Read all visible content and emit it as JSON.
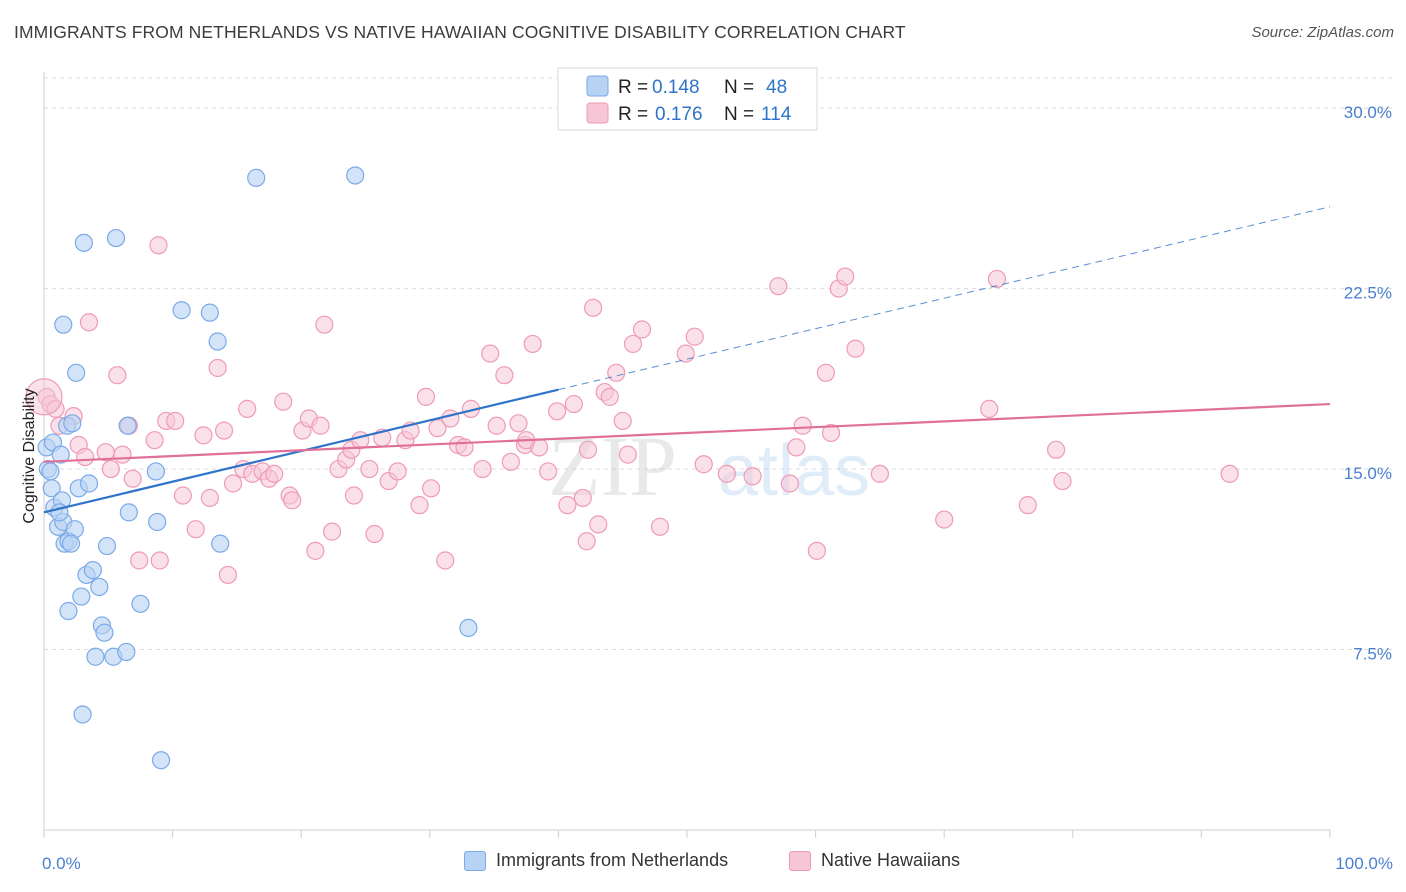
{
  "title": "IMMIGRANTS FROM NETHERLANDS VS NATIVE HAWAIIAN COGNITIVE DISABILITY CORRELATION CHART",
  "source": "Source: ZipAtlas.com",
  "watermark": "ZIPatlas",
  "colors": {
    "blue": "#7aaae8",
    "blue_fill": "#b8d2f4",
    "blue_line": "#2f74c8",
    "pink": "#ef9ab7",
    "pink_fill": "#f6c6d6",
    "pink_line": "#e0709a",
    "grid": "#dcdcdc",
    "tick_label": "#4a7fd0"
  },
  "legend": {
    "rows": [
      {
        "r_label": "R =",
        "r_value": "0.148",
        "n_label": "N =",
        "n_value": "48"
      },
      {
        "r_label": "R =",
        "r_value": "0.176",
        "n_label": "N =",
        "n_value": "114"
      }
    ]
  },
  "bottom_legend": [
    "Immigrants from Netherlands",
    "Native Hawaiians"
  ],
  "chart_data": {
    "type": "scatter",
    "title": "IMMIGRANTS FROM NETHERLANDS VS NATIVE HAWAIIAN COGNITIVE DISABILITY CORRELATION CHART",
    "xlabel": "",
    "ylabel": "Cognitive Disability",
    "xlim": [
      0,
      100
    ],
    "ylim": [
      0,
      31.5
    ],
    "x_tick_labels": [
      "0.0%",
      "100.0%"
    ],
    "y_ticks": [
      7.5,
      15.0,
      22.5,
      30.0
    ],
    "y_tick_labels": [
      "7.5%",
      "15.0%",
      "22.5%",
      "30.0%"
    ],
    "series": [
      {
        "name": "Immigrants from Netherlands",
        "r": 0.148,
        "n": 48,
        "trend": {
          "x0": 0,
          "y0": 13.2,
          "x1": 40,
          "y1": 18.3,
          "dash_to_x": 100,
          "dash_to_y": 25.9
        },
        "points": [
          [
            0.2,
            15.9
          ],
          [
            0.3,
            15.0
          ],
          [
            0.5,
            14.9
          ],
          [
            0.6,
            14.2
          ],
          [
            0.7,
            16.1
          ],
          [
            0.8,
            13.4
          ],
          [
            1.1,
            12.6
          ],
          [
            1.3,
            15.6
          ],
          [
            1.4,
            13.7
          ],
          [
            1.5,
            12.8
          ],
          [
            1.6,
            11.9
          ],
          [
            1.8,
            16.8
          ],
          [
            1.9,
            12.0
          ],
          [
            2.2,
            16.9
          ],
          [
            2.4,
            12.5
          ],
          [
            2.5,
            19.0
          ],
          [
            2.7,
            14.2
          ],
          [
            2.9,
            9.7
          ],
          [
            3.1,
            24.4
          ],
          [
            3.3,
            10.6
          ],
          [
            3.5,
            14.4
          ],
          [
            3.8,
            10.8
          ],
          [
            4.0,
            7.2
          ],
          [
            4.3,
            10.1
          ],
          [
            4.5,
            8.5
          ],
          [
            4.7,
            8.2
          ],
          [
            4.9,
            11.8
          ],
          [
            5.4,
            7.2
          ],
          [
            5.6,
            24.6
          ],
          [
            6.4,
            7.4
          ],
          [
            6.6,
            13.2
          ],
          [
            7.5,
            9.4
          ],
          [
            8.7,
            14.9
          ],
          [
            8.8,
            12.8
          ],
          [
            9.1,
            2.9
          ],
          [
            10.7,
            21.6
          ],
          [
            12.9,
            21.5
          ],
          [
            13.5,
            20.3
          ],
          [
            13.7,
            11.9
          ],
          [
            16.5,
            27.1
          ],
          [
            24.2,
            27.2
          ],
          [
            33.0,
            8.4
          ],
          [
            1.5,
            21.0
          ],
          [
            1.2,
            13.2
          ],
          [
            6.5,
            16.8
          ],
          [
            2.1,
            11.9
          ],
          [
            3.0,
            4.8
          ],
          [
            1.9,
            9.1
          ]
        ]
      },
      {
        "name": "Native Hawaiians",
        "r": 0.176,
        "n": 114,
        "trend": {
          "x0": 0,
          "y0": 15.3,
          "x1": 100,
          "y1": 17.7
        },
        "points": [
          [
            0.2,
            18.0
          ],
          [
            0.5,
            17.7
          ],
          [
            0.9,
            17.5
          ],
          [
            1.2,
            16.8
          ],
          [
            2.3,
            17.2
          ],
          [
            2.7,
            16.0
          ],
          [
            3.2,
            15.5
          ],
          [
            3.5,
            21.1
          ],
          [
            4.8,
            15.7
          ],
          [
            5.2,
            15.0
          ],
          [
            5.7,
            18.9
          ],
          [
            6.6,
            16.8
          ],
          [
            6.9,
            14.6
          ],
          [
            7.4,
            11.2
          ],
          [
            8.6,
            16.2
          ],
          [
            8.9,
            24.3
          ],
          [
            9.0,
            11.2
          ],
          [
            9.5,
            17.0
          ],
          [
            10.2,
            17.0
          ],
          [
            10.8,
            13.9
          ],
          [
            11.8,
            12.5
          ],
          [
            12.4,
            16.4
          ],
          [
            12.9,
            13.8
          ],
          [
            13.5,
            19.2
          ],
          [
            14.0,
            16.6
          ],
          [
            14.3,
            10.6
          ],
          [
            14.7,
            14.4
          ],
          [
            15.5,
            15.0
          ],
          [
            15.8,
            17.5
          ],
          [
            16.2,
            14.8
          ],
          [
            17.0,
            14.9
          ],
          [
            17.5,
            14.6
          ],
          [
            17.9,
            14.8
          ],
          [
            18.6,
            17.8
          ],
          [
            19.1,
            13.9
          ],
          [
            19.3,
            13.7
          ],
          [
            20.1,
            16.6
          ],
          [
            20.6,
            17.1
          ],
          [
            21.1,
            11.6
          ],
          [
            21.5,
            16.8
          ],
          [
            21.8,
            21.0
          ],
          [
            22.4,
            12.4
          ],
          [
            22.9,
            15.0
          ],
          [
            23.5,
            15.4
          ],
          [
            23.9,
            15.8
          ],
          [
            24.1,
            13.9
          ],
          [
            24.6,
            16.2
          ],
          [
            25.3,
            15.0
          ],
          [
            25.7,
            12.3
          ],
          [
            26.3,
            16.3
          ],
          [
            26.8,
            14.5
          ],
          [
            27.5,
            14.9
          ],
          [
            28.1,
            16.2
          ],
          [
            28.5,
            16.6
          ],
          [
            29.2,
            13.5
          ],
          [
            29.7,
            18.0
          ],
          [
            30.1,
            14.2
          ],
          [
            30.6,
            16.7
          ],
          [
            31.2,
            11.2
          ],
          [
            31.6,
            17.1
          ],
          [
            32.2,
            16.0
          ],
          [
            32.7,
            15.9
          ],
          [
            33.2,
            17.5
          ],
          [
            34.1,
            15.0
          ],
          [
            34.7,
            19.8
          ],
          [
            35.2,
            16.8
          ],
          [
            35.8,
            18.9
          ],
          [
            36.3,
            15.3
          ],
          [
            36.9,
            16.9
          ],
          [
            37.4,
            16.0
          ],
          [
            38.0,
            20.2
          ],
          [
            38.5,
            15.9
          ],
          [
            39.2,
            14.9
          ],
          [
            39.9,
            17.4
          ],
          [
            40.7,
            13.5
          ],
          [
            41.2,
            17.7
          ],
          [
            41.9,
            13.8
          ],
          [
            42.2,
            12.0
          ],
          [
            42.3,
            15.8
          ],
          [
            42.7,
            21.7
          ],
          [
            43.1,
            12.7
          ],
          [
            43.6,
            18.2
          ],
          [
            44.0,
            18.0
          ],
          [
            44.5,
            19.0
          ],
          [
            45.0,
            17.0
          ],
          [
            45.4,
            15.6
          ],
          [
            45.8,
            20.2
          ],
          [
            46.5,
            20.8
          ],
          [
            47.9,
            12.6
          ],
          [
            49.9,
            19.8
          ],
          [
            50.6,
            20.5
          ],
          [
            51.3,
            15.2
          ],
          [
            53.1,
            14.8
          ],
          [
            55.1,
            14.7
          ],
          [
            57.1,
            22.6
          ],
          [
            58.0,
            14.4
          ],
          [
            58.5,
            15.9
          ],
          [
            59.0,
            16.8
          ],
          [
            60.1,
            11.6
          ],
          [
            60.8,
            19.0
          ],
          [
            61.2,
            16.5
          ],
          [
            61.8,
            22.5
          ],
          [
            62.3,
            23.0
          ],
          [
            63.1,
            20.0
          ],
          [
            65.0,
            14.8
          ],
          [
            70.0,
            12.9
          ],
          [
            73.5,
            17.5
          ],
          [
            74.1,
            22.9
          ],
          [
            76.5,
            13.5
          ],
          [
            78.7,
            15.8
          ],
          [
            79.2,
            14.5
          ],
          [
            92.2,
            14.8
          ],
          [
            37.5,
            16.2
          ],
          [
            6.1,
            15.6
          ]
        ]
      }
    ]
  }
}
